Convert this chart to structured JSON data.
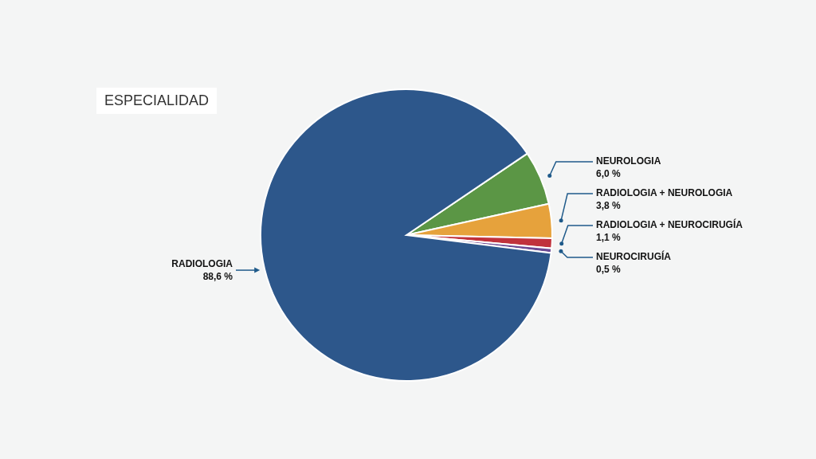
{
  "chart_data": {
    "type": "pie",
    "title": "ESPECIALIDAD",
    "categories": [
      "NEUROLOGIA",
      "RADIOLOGIA + NEUROLOGIA",
      "RADIOLOGIA + NEUROCIRUGÍA",
      "NEUROCIRUGÍA",
      "RADIOLOGIA"
    ],
    "values": [
      6.0,
      3.8,
      1.1,
      0.5,
      88.6
    ],
    "colors": [
      "#5b9645",
      "#e6a23c",
      "#c0323c",
      "#6b4a93",
      "#2d578b"
    ],
    "value_labels": [
      "6,0 %",
      "3,8 %",
      "1,1 %",
      "0,5 %",
      "88,6 %"
    ]
  }
}
